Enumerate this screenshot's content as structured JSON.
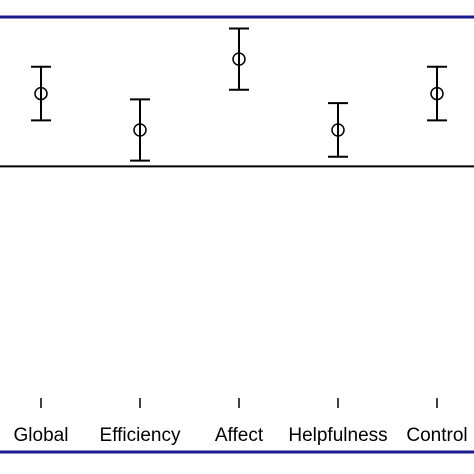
{
  "chart_data": {
    "type": "errorbar",
    "categories": [
      "Global",
      "Efficiency",
      "Affect",
      "Helpfulness",
      "Control"
    ],
    "values": [
      80,
      70.5,
      89,
      70.5,
      80
    ],
    "errors": [
      7,
      8,
      8,
      7,
      7
    ],
    "color": "#000000",
    "frame_color": "#1a1a8c",
    "hline": 61,
    "ylim": [
      0,
      100
    ]
  }
}
